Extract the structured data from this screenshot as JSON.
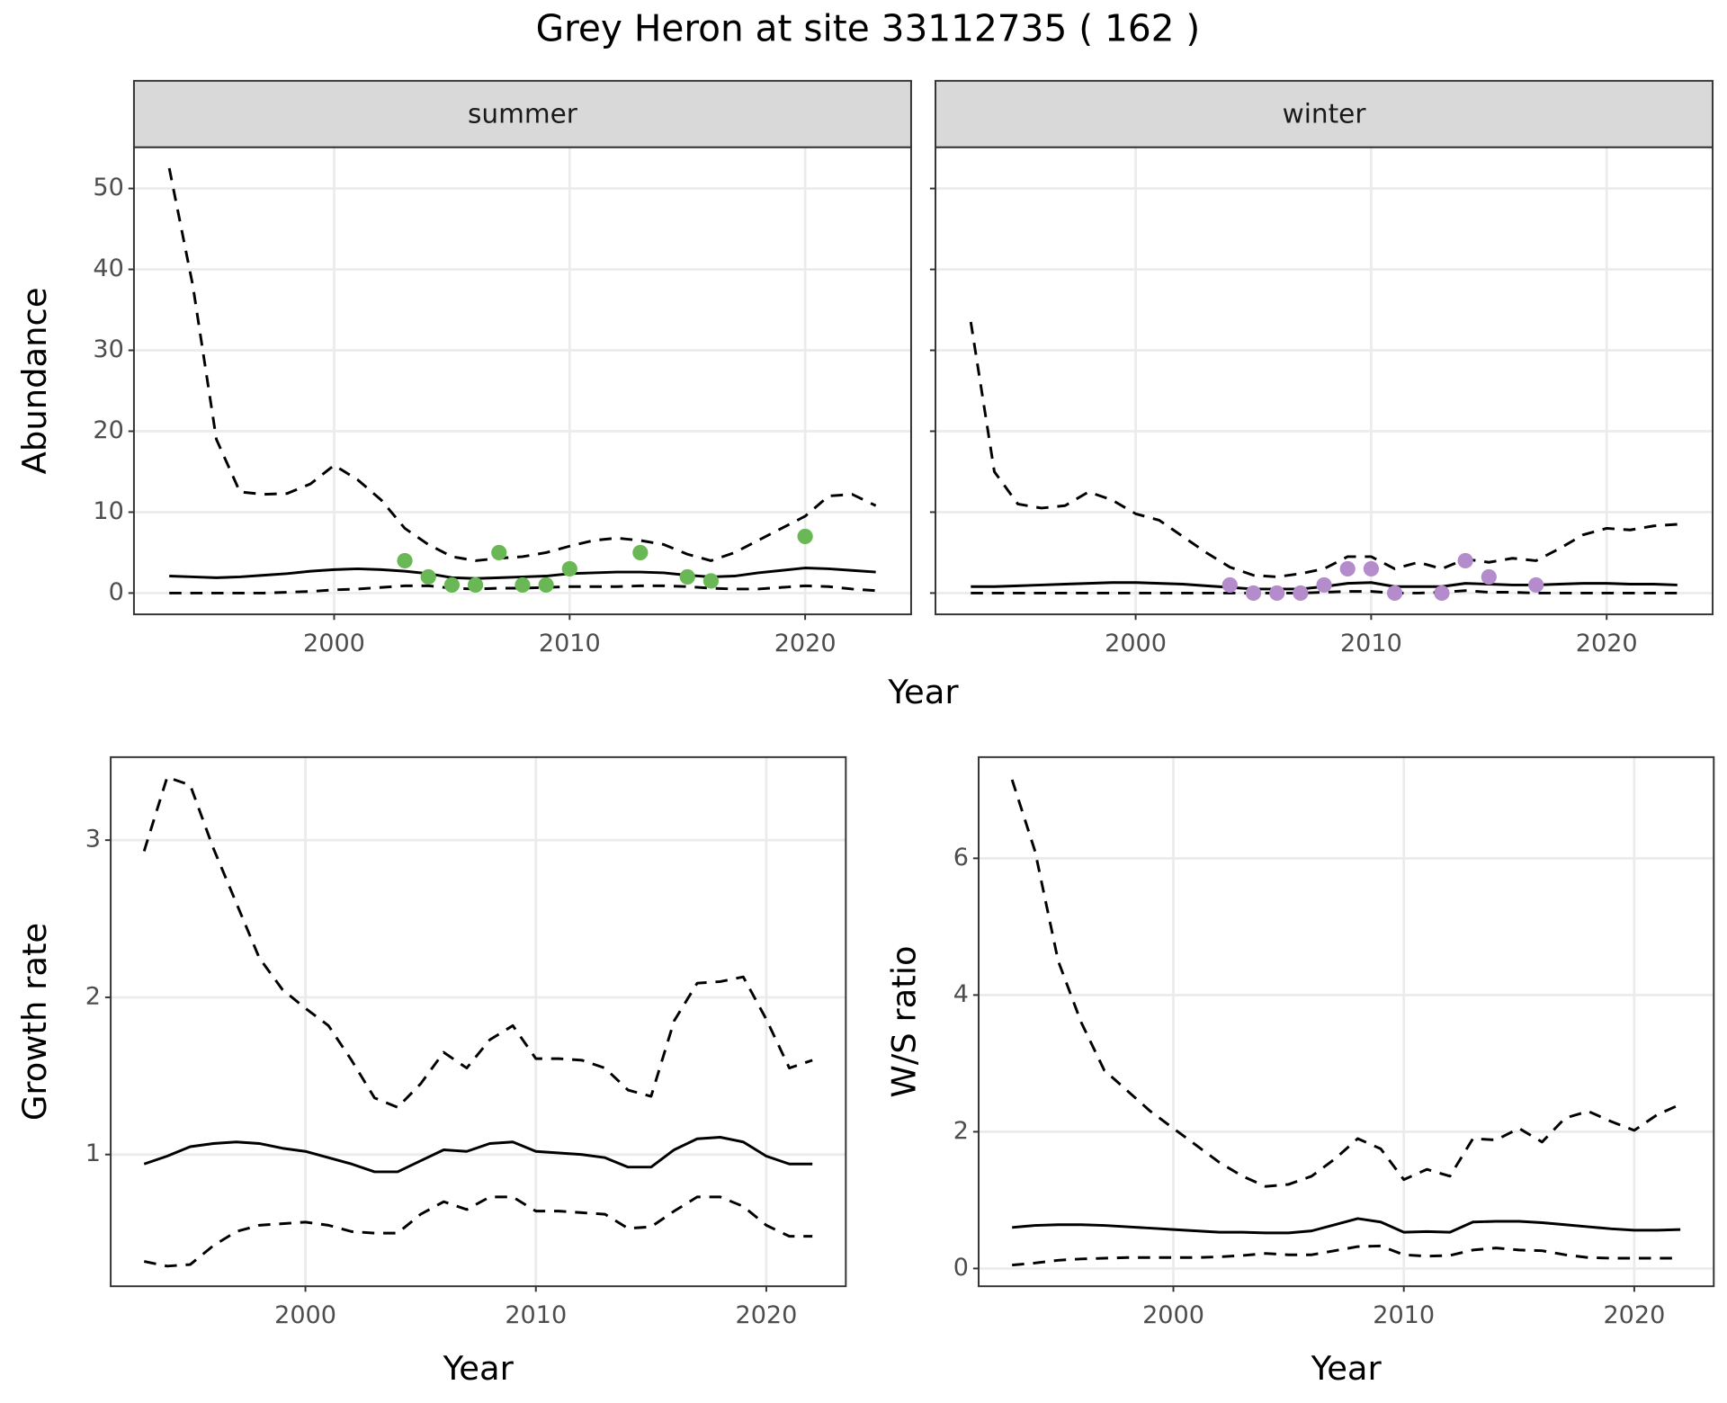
{
  "title": "Grey Heron at site 33112735 ( 162 )",
  "chart_data": [
    {
      "type": "line",
      "xlabel": "Year",
      "ylabel": "Abundance",
      "xlim": [
        1991.5,
        2024.5
      ],
      "ylim": [
        -2.63,
        55.1
      ],
      "xticks": [
        2000,
        2010,
        2020
      ],
      "yticks": [
        0,
        10,
        20,
        30,
        40,
        50
      ],
      "grid": true,
      "facets": [
        {
          "strip": "summer",
          "x": [
            1993,
            1994,
            1995,
            1996,
            1997,
            1998,
            1999,
            2000,
            2001,
            2002,
            2003,
            2004,
            2005,
            2006,
            2007,
            2008,
            2009,
            2010,
            2011,
            2012,
            2013,
            2014,
            2015,
            2016,
            2017,
            2018,
            2019,
            2020,
            2021,
            2022,
            2023
          ],
          "series": [
            {
              "color": "#000000",
              "linetype": "solid",
              "values": [
                2.1,
                2.0,
                1.9,
                2.0,
                2.2,
                2.4,
                2.7,
                2.9,
                3.0,
                2.9,
                2.7,
                2.4,
                1.9,
                1.8,
                1.9,
                2.0,
                2.1,
                2.4,
                2.5,
                2.6,
                2.6,
                2.5,
                2.2,
                2.0,
                2.1,
                2.5,
                2.8,
                3.1,
                3.0,
                2.8,
                2.6
              ]
            },
            {
              "color": "#000000",
              "linetype": "dashed",
              "values": [
                0,
                0,
                0,
                0,
                0,
                0.1,
                0.2,
                0.4,
                0.5,
                0.7,
                0.9,
                0.9,
                0.6,
                0.5,
                0.6,
                0.6,
                0.7,
                0.8,
                0.8,
                0.8,
                0.9,
                0.9,
                0.8,
                0.6,
                0.5,
                0.5,
                0.7,
                0.9,
                0.8,
                0.5,
                0.3
              ]
            },
            {
              "color": "#000000",
              "linetype": "dashed",
              "values": [
                52.5,
                38,
                19,
                12.5,
                12.2,
                12.3,
                13.5,
                15.8,
                14,
                11.5,
                8,
                6,
                4.5,
                4,
                4.3,
                4.5,
                5,
                5.8,
                6.5,
                6.8,
                6.5,
                6,
                4.8,
                4,
                5,
                6.5,
                8,
                9.5,
                12,
                12.2,
                10.8
              ]
            },
            {
              "color": "#6ab855",
              "marker": "point",
              "x": [
                2003,
                2004,
                2005,
                2006,
                2007,
                2008,
                2009,
                2010,
                2013,
                2015,
                2016,
                2020
              ],
              "values": [
                4,
                2,
                1,
                1,
                5,
                1,
                1,
                3,
                5,
                2,
                1.5,
                7
              ]
            }
          ]
        },
        {
          "strip": "winter",
          "x": [
            1993,
            1994,
            1995,
            1996,
            1997,
            1998,
            1999,
            2000,
            2001,
            2002,
            2003,
            2004,
            2005,
            2006,
            2007,
            2008,
            2009,
            2010,
            2011,
            2012,
            2013,
            2014,
            2015,
            2016,
            2017,
            2018,
            2019,
            2020,
            2021,
            2022,
            2023
          ],
          "series": [
            {
              "color": "#000000",
              "linetype": "solid",
              "values": [
                0.8,
                0.8,
                0.9,
                1.0,
                1.1,
                1.2,
                1.3,
                1.3,
                1.2,
                1.1,
                0.9,
                0.7,
                0.5,
                0.5,
                0.5,
                0.8,
                1.2,
                1.3,
                0.8,
                0.8,
                0.8,
                1.2,
                1.1,
                1.0,
                1.0,
                1.1,
                1.2,
                1.2,
                1.1,
                1.1,
                1.0
              ]
            },
            {
              "color": "#000000",
              "linetype": "dashed",
              "values": [
                0,
                0,
                0,
                0,
                0,
                0,
                0,
                0,
                0,
                0,
                0,
                0,
                0,
                0,
                0,
                0.1,
                0.2,
                0.2,
                0,
                0,
                0.1,
                0.3,
                0.1,
                0.1,
                0,
                0,
                0,
                0,
                0,
                0,
                0
              ]
            },
            {
              "color": "#000000",
              "linetype": "dashed",
              "values": [
                33.5,
                15,
                11,
                10.5,
                10.8,
                12.5,
                11.5,
                9.8,
                9,
                7,
                5,
                3.2,
                2.2,
                2,
                2.4,
                3,
                4.5,
                4.5,
                3,
                3.8,
                3,
                4.2,
                3.8,
                4.3,
                4,
                5.5,
                7.2,
                8,
                7.8,
                8.3,
                8.5
              ]
            },
            {
              "color": "#b48ccc",
              "marker": "point",
              "x": [
                2004,
                2005,
                2006,
                2007,
                2008,
                2009,
                2010,
                2011,
                2013,
                2014,
                2015,
                2017
              ],
              "values": [
                1,
                0,
                0,
                0,
                1,
                3,
                3,
                0,
                0,
                4,
                2,
                1
              ]
            }
          ]
        }
      ]
    },
    {
      "type": "line",
      "xlabel": "Year",
      "ylabel": "Growth rate",
      "xlim": [
        1991.55,
        2023.45
      ],
      "ylim": [
        0.162,
        3.528
      ],
      "xticks": [
        2000,
        2010,
        2020
      ],
      "yticks": [
        1,
        2,
        3
      ],
      "grid": true,
      "x": [
        1993,
        1994,
        1995,
        1996,
        1997,
        1998,
        1999,
        2000,
        2001,
        2002,
        2003,
        2004,
        2005,
        2006,
        2007,
        2008,
        2009,
        2010,
        2011,
        2012,
        2013,
        2014,
        2015,
        2016,
        2017,
        2018,
        2019,
        2020,
        2021,
        2022
      ],
      "series": [
        {
          "color": "#000000",
          "linetype": "solid",
          "values": [
            0.94,
            0.99,
            1.05,
            1.07,
            1.08,
            1.07,
            1.04,
            1.02,
            0.98,
            0.94,
            0.89,
            0.89,
            0.96,
            1.03,
            1.02,
            1.07,
            1.08,
            1.02,
            1.01,
            1.0,
            0.98,
            0.92,
            0.92,
            1.03,
            1.1,
            1.11,
            1.08,
            0.99,
            0.94,
            0.94
          ]
        },
        {
          "color": "#000000",
          "linetype": "dashed",
          "values": [
            0.32,
            0.29,
            0.3,
            0.42,
            0.51,
            0.55,
            0.56,
            0.57,
            0.55,
            0.51,
            0.5,
            0.5,
            0.62,
            0.7,
            0.65,
            0.73,
            0.73,
            0.64,
            0.64,
            0.63,
            0.62,
            0.53,
            0.54,
            0.64,
            0.73,
            0.73,
            0.67,
            0.55,
            0.48,
            0.48
          ]
        },
        {
          "color": "#000000",
          "linetype": "dashed",
          "values": [
            2.93,
            3.4,
            3.35,
            2.95,
            2.6,
            2.25,
            2.05,
            1.93,
            1.82,
            1.6,
            1.36,
            1.3,
            1.45,
            1.65,
            1.55,
            1.73,
            1.82,
            1.61,
            1.61,
            1.6,
            1.55,
            1.41,
            1.37,
            1.85,
            2.09,
            2.1,
            2.13,
            1.86,
            1.55,
            1.6
          ]
        }
      ]
    },
    {
      "type": "line",
      "xlabel": "Year",
      "ylabel": "W/S ratio",
      "xlim": [
        1991.55,
        2023.45
      ],
      "ylim": [
        -0.26,
        7.48
      ],
      "xticks": [
        2000,
        2010,
        2020
      ],
      "yticks": [
        0,
        2,
        4,
        6
      ],
      "grid": true,
      "x": [
        1993,
        1994,
        1995,
        1996,
        1997,
        1998,
        1999,
        2000,
        2001,
        2002,
        2003,
        2004,
        2005,
        2006,
        2007,
        2008,
        2009,
        2010,
        2011,
        2012,
        2013,
        2014,
        2015,
        2016,
        2017,
        2018,
        2019,
        2020,
        2021,
        2022
      ],
      "series": [
        {
          "color": "#000000",
          "linetype": "solid",
          "values": [
            0.6,
            0.63,
            0.64,
            0.64,
            0.63,
            0.61,
            0.59,
            0.57,
            0.55,
            0.53,
            0.53,
            0.52,
            0.52,
            0.55,
            0.64,
            0.73,
            0.68,
            0.53,
            0.54,
            0.53,
            0.68,
            0.69,
            0.69,
            0.67,
            0.64,
            0.61,
            0.58,
            0.56,
            0.56,
            0.57
          ]
        },
        {
          "color": "#000000",
          "linetype": "dashed",
          "values": [
            0.05,
            0.08,
            0.12,
            0.14,
            0.15,
            0.16,
            0.16,
            0.16,
            0.16,
            0.17,
            0.19,
            0.22,
            0.2,
            0.2,
            0.26,
            0.32,
            0.33,
            0.2,
            0.18,
            0.19,
            0.27,
            0.3,
            0.27,
            0.26,
            0.2,
            0.16,
            0.15,
            0.15,
            0.15,
            0.15
          ]
        },
        {
          "color": "#000000",
          "linetype": "dashed",
          "values": [
            7.15,
            6.1,
            4.5,
            3.6,
            2.9,
            2.6,
            2.3,
            2.05,
            1.8,
            1.55,
            1.35,
            1.2,
            1.23,
            1.35,
            1.6,
            1.9,
            1.75,
            1.3,
            1.45,
            1.35,
            1.9,
            1.88,
            2.05,
            1.85,
            2.2,
            2.3,
            2.15,
            2.02,
            2.25,
            2.4
          ]
        }
      ]
    }
  ]
}
